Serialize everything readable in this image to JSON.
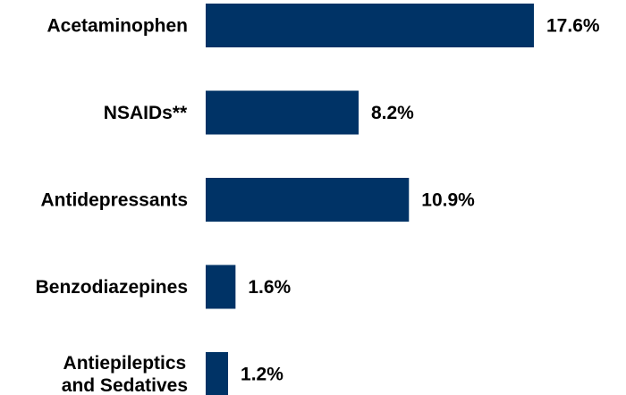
{
  "chart_data": {
    "type": "bar",
    "orientation": "horizontal",
    "categories": [
      [
        "Acetaminophen"
      ],
      [
        "NSAIDs**"
      ],
      [
        "Antidepressants"
      ],
      [
        "Benzodiazepines"
      ],
      [
        "Antiepileptics",
        "and Sedatives"
      ]
    ],
    "values": [
      17.6,
      8.2,
      10.9,
      1.6,
      1.2
    ],
    "value_labels": [
      "17.6%",
      "8.2%",
      "10.9%",
      "1.6%",
      "1.2%"
    ],
    "xlim": [
      0,
      20
    ],
    "grid": false,
    "legend": "none",
    "bar_color": "#003366",
    "text_color": "#000000"
  }
}
